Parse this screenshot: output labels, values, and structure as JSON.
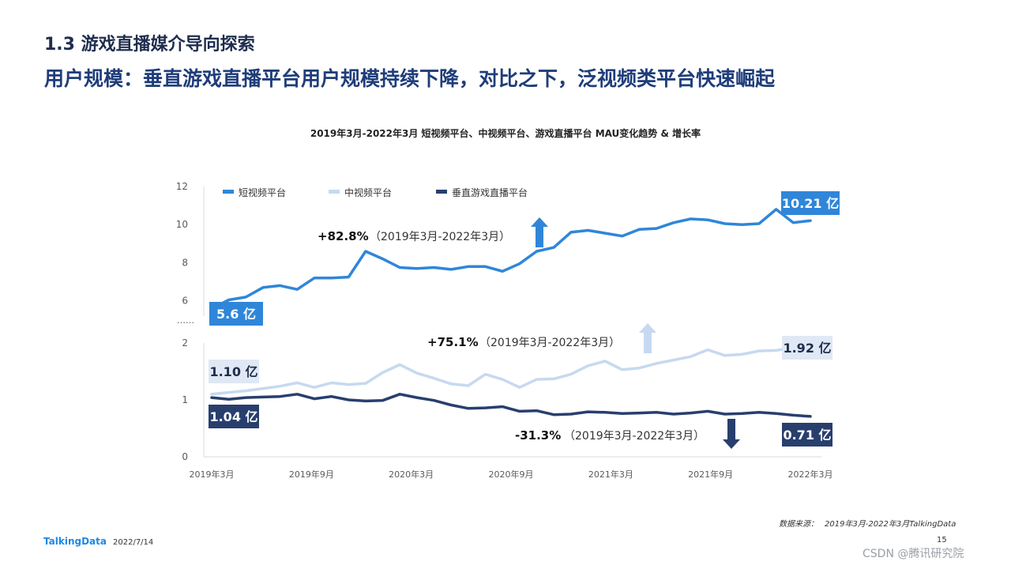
{
  "header": {
    "section": "1.3 游戏直播媒介导向探索",
    "headline": "用户规模：垂直游戏直播平台用户规模持续下降，对比之下，泛视频类平台快速崛起"
  },
  "chart_data": {
    "type": "line",
    "title": "2019年3月-2022年3月 短视频平台、中视频平台、游戏直播平台 MAU变化趋势 & 增长率",
    "unit": "亿",
    "x_tick_labels": [
      "2019年3月",
      "2019年9月",
      "2020年3月",
      "2020年9月",
      "2021年3月",
      "2021年9月",
      "2022年3月"
    ],
    "y_ticks_upper": [
      "6",
      "8",
      "10",
      "12"
    ],
    "y_ticks_lower": [
      "0",
      "1",
      "2"
    ],
    "axis_break": "……",
    "ylim_upper": [
      5.2,
      12
    ],
    "ylim_lower": [
      0,
      2
    ],
    "legend_position": "top-left",
    "series": [
      {
        "name": "短视频平台",
        "color": "#2f86d9",
        "panel": "upper",
        "values": [
          5.6,
          6.05,
          6.2,
          6.7,
          6.8,
          6.6,
          7.2,
          7.2,
          7.25,
          8.6,
          8.2,
          7.75,
          7.7,
          7.75,
          7.65,
          7.8,
          7.8,
          7.55,
          7.95,
          8.6,
          8.8,
          9.6,
          9.7,
          9.55,
          9.4,
          9.75,
          9.8,
          10.1,
          10.3,
          10.25,
          10.05,
          10.0,
          10.05,
          10.8,
          10.1,
          10.21
        ],
        "start_label": "5.6 亿",
        "end_label": "10.21 亿",
        "growth": "+82.8%",
        "growth_period": "（2019年3月-2022年3月）",
        "growth_direction": "up",
        "growth_color": "#2f86d9"
      },
      {
        "name": "中视频平台",
        "color": "#c6d9f0",
        "panel": "lower",
        "values": [
          1.1,
          1.13,
          1.16,
          1.2,
          1.24,
          1.3,
          1.22,
          1.3,
          1.27,
          1.29,
          1.48,
          1.62,
          1.47,
          1.38,
          1.28,
          1.25,
          1.45,
          1.36,
          1.22,
          1.36,
          1.37,
          1.45,
          1.6,
          1.68,
          1.53,
          1.56,
          1.64,
          1.7,
          1.76,
          1.88,
          1.78,
          1.8,
          1.86,
          1.87,
          1.92,
          1.92
        ],
        "start_label": "1.10 亿",
        "end_label": "1.92 亿",
        "growth": "+75.1%",
        "growth_period": "（2019年3月-2022年3月）",
        "growth_direction": "up",
        "growth_color": "#c6d9f0"
      },
      {
        "name": "垂直游戏直播平台",
        "color": "#283f6e",
        "panel": "lower",
        "values": [
          1.04,
          1.01,
          1.04,
          1.05,
          1.06,
          1.1,
          1.02,
          1.06,
          1.0,
          0.98,
          0.99,
          1.1,
          1.04,
          0.99,
          0.91,
          0.85,
          0.86,
          0.88,
          0.8,
          0.81,
          0.74,
          0.75,
          0.79,
          0.78,
          0.76,
          0.77,
          0.78,
          0.75,
          0.77,
          0.8,
          0.75,
          0.76,
          0.78,
          0.76,
          0.73,
          0.71
        ],
        "start_label": "1.04 亿",
        "end_label": "0.71 亿",
        "growth": "-31.3%",
        "growth_period": "（2019年3月-2022年3月）",
        "growth_direction": "down",
        "growth_color": "#283f6e"
      }
    ]
  },
  "footer": {
    "logo": "TalkingData",
    "date": "2022/7/14",
    "page": "15",
    "source_label": "数据来源：",
    "source_text": "2019年3月-2022年3月TalkingData",
    "watermark": "CSDN @腾讯研究院"
  }
}
